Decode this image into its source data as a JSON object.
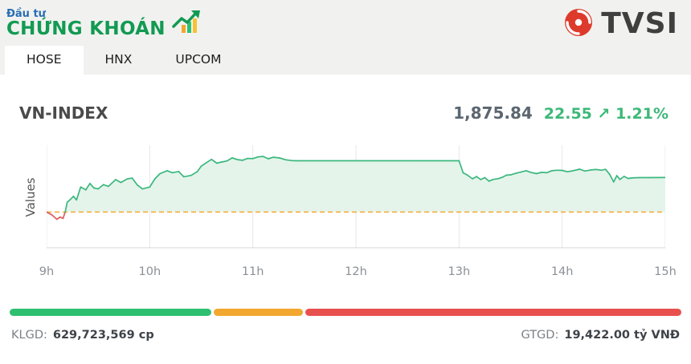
{
  "header": {
    "brand_top": "Đầu tư",
    "brand_main": "CHỨNG KHOÁN",
    "logo_text": "TVSI"
  },
  "tabs": [
    {
      "label": "HOSE",
      "active": true
    },
    {
      "label": "HNX",
      "active": false
    },
    {
      "label": "UPCOM",
      "active": false
    }
  ],
  "index": {
    "name": "VN-INDEX",
    "value": "1,875.84",
    "change": "22.55",
    "change_arrow": "↗",
    "change_percent": "1.21%"
  },
  "chart_data": {
    "type": "area",
    "title": "VN-INDEX intraday",
    "ylabel": "Values",
    "x_ticks": [
      "9h",
      "10h",
      "11h",
      "12h",
      "13h",
      "14h",
      "15h"
    ],
    "x_range": [
      9,
      15
    ],
    "ylim": [
      1830,
      1897
    ],
    "reference_value": 1853.29,
    "grid": "vertical-only",
    "colors": {
      "line": "#3bb77e",
      "fill": "#e4f4ea",
      "below": "#e05c5c",
      "reference": "#f6a832",
      "grid": "#e5e7e5",
      "axis": "#d6d8d6"
    },
    "points": [
      [
        9.0,
        1853.3
      ],
      [
        9.05,
        1851.5
      ],
      [
        9.1,
        1848.6
      ],
      [
        9.13,
        1850.0
      ],
      [
        9.16,
        1849.2
      ],
      [
        9.18,
        1853.3
      ],
      [
        9.2,
        1859.8
      ],
      [
        9.23,
        1861.5
      ],
      [
        9.26,
        1863.6
      ],
      [
        9.29,
        1861.2
      ],
      [
        9.33,
        1869.6
      ],
      [
        9.38,
        1867.8
      ],
      [
        9.42,
        1872.0
      ],
      [
        9.46,
        1869.0
      ],
      [
        9.5,
        1868.4
      ],
      [
        9.55,
        1871.2
      ],
      [
        9.6,
        1870.1
      ],
      [
        9.67,
        1874.5
      ],
      [
        9.72,
        1872.6
      ],
      [
        9.78,
        1874.9
      ],
      [
        9.83,
        1875.5
      ],
      [
        9.88,
        1871.0
      ],
      [
        9.93,
        1868.4
      ],
      [
        10.0,
        1869.6
      ],
      [
        10.05,
        1875.0
      ],
      [
        10.1,
        1878.4
      ],
      [
        10.17,
        1880.3
      ],
      [
        10.22,
        1879.0
      ],
      [
        10.28,
        1879.8
      ],
      [
        10.33,
        1876.4
      ],
      [
        10.4,
        1877.2
      ],
      [
        10.46,
        1879.6
      ],
      [
        10.5,
        1883.3
      ],
      [
        10.55,
        1885.6
      ],
      [
        10.6,
        1887.7
      ],
      [
        10.65,
        1885.2
      ],
      [
        10.7,
        1886.0
      ],
      [
        10.75,
        1886.7
      ],
      [
        10.8,
        1888.7
      ],
      [
        10.85,
        1887.5
      ],
      [
        10.9,
        1887.1
      ],
      [
        10.95,
        1888.3
      ],
      [
        11.0,
        1888.2
      ],
      [
        11.05,
        1889.3
      ],
      [
        11.1,
        1889.6
      ],
      [
        11.15,
        1888.1
      ],
      [
        11.2,
        1889.1
      ],
      [
        11.26,
        1888.6
      ],
      [
        11.32,
        1887.4
      ],
      [
        11.38,
        1886.9
      ],
      [
        11.42,
        1886.8
      ],
      [
        13.0,
        1886.8
      ],
      [
        13.04,
        1878.9
      ],
      [
        13.08,
        1877.5
      ],
      [
        13.13,
        1875.0
      ],
      [
        13.17,
        1876.5
      ],
      [
        13.21,
        1874.5
      ],
      [
        13.25,
        1875.8
      ],
      [
        13.29,
        1873.5
      ],
      [
        13.33,
        1874.6
      ],
      [
        13.38,
        1875.1
      ],
      [
        13.42,
        1876.0
      ],
      [
        13.46,
        1877.4
      ],
      [
        13.5,
        1877.6
      ],
      [
        13.55,
        1878.6
      ],
      [
        13.6,
        1879.4
      ],
      [
        13.65,
        1880.3
      ],
      [
        13.7,
        1879.1
      ],
      [
        13.75,
        1878.4
      ],
      [
        13.8,
        1879.2
      ],
      [
        13.85,
        1879.0
      ],
      [
        13.9,
        1880.3
      ],
      [
        13.95,
        1880.6
      ],
      [
        14.0,
        1880.5
      ],
      [
        14.05,
        1879.6
      ],
      [
        14.1,
        1880.2
      ],
      [
        14.17,
        1881.3
      ],
      [
        14.22,
        1880.1
      ],
      [
        14.28,
        1880.8
      ],
      [
        14.33,
        1881.1
      ],
      [
        14.38,
        1880.6
      ],
      [
        14.42,
        1881.2
      ],
      [
        14.46,
        1878.0
      ],
      [
        14.5,
        1873.0
      ],
      [
        14.53,
        1877.1
      ],
      [
        14.56,
        1874.6
      ],
      [
        14.6,
        1876.6
      ],
      [
        14.64,
        1875.2
      ],
      [
        14.68,
        1875.6
      ],
      [
        14.75,
        1875.8
      ],
      [
        14.85,
        1875.8
      ],
      [
        15.0,
        1875.84
      ]
    ]
  },
  "volume_bar": {
    "segments": [
      {
        "name": "advancing",
        "color": "#2fbf71",
        "percent": 30.2
      },
      {
        "name": "unchanged",
        "color": "#f2a72e",
        "percent": 13.4
      },
      {
        "name": "declining",
        "color": "#e8504d",
        "percent": 56.4
      }
    ]
  },
  "stats": {
    "klgd_label": "KLGD:",
    "klgd_value": "629,723,569 cp",
    "gtgd_label": "GTGD:",
    "gtgd_value": "19,422.00 tỷ VNĐ"
  }
}
